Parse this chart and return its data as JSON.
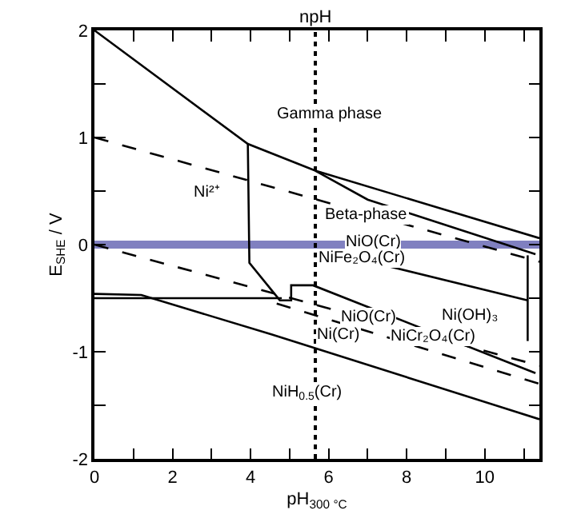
{
  "chart_data": {
    "type": "line",
    "xlabel": "pH$_{300 °C}$",
    "ylabel": "E$_{SHE}$ / V",
    "xlim": [
      0,
      11.4
    ],
    "ylim": [
      -2,
      2
    ],
    "xticks": [
      0,
      {
        "value": 1,
        "label": null
      },
      2,
      {
        "value": 3,
        "label": null
      },
      4,
      {
        "value": 5,
        "label": null
      },
      6,
      {
        "value": 7,
        "label": null
      },
      8,
      {
        "value": 9,
        "label": null
      },
      10,
      {
        "value": 11,
        "label": null
      }
    ],
    "yticks": [
      -2,
      {
        "value": -1.5,
        "label": null
      },
      -1,
      {
        "value": -0.5,
        "label": null
      },
      0,
      {
        "value": 0.5,
        "label": null
      },
      1,
      {
        "value": 1.5,
        "label": null
      },
      2
    ],
    "grid": false,
    "marker": "none",
    "series": [
      {
        "color": "#000000",
        "line_style": "solid",
        "x": [
          0,
          3.93,
          5.66,
          11.4
        ],
        "values": [
          2,
          0.94,
          0.69,
          0.06
        ]
      },
      {
        "color": "#000000",
        "line_style": "solid",
        "x": [
          5.66,
          7.0,
          11.3
        ],
        "values": [
          0.69,
          0.42,
          -0.09
        ]
      },
      {
        "color": "#000000",
        "line_style": "solid",
        "x": [
          3.93,
          3.97,
          4.75,
          5.04,
          5.04,
          5.6,
          11.3
        ],
        "values": [
          0.94,
          -0.17,
          -0.52,
          -0.52,
          -0.38,
          -0.38,
          -1.2
        ]
      },
      {
        "color": "#000000",
        "line_style": "solid",
        "x": [
          0,
          4.8
        ],
        "values": [
          -0.5,
          -0.5
        ]
      },
      {
        "color": "#000000",
        "line_style": "solid",
        "x": [
          0,
          1.2,
          4.55,
          11.4
        ],
        "values": [
          -0.46,
          -0.47,
          -0.84,
          -1.63
        ]
      },
      {
        "color": "#000000",
        "line_style": "solid",
        "x": [
          7.4,
          11.1
        ],
        "values": [
          -0.19,
          -0.52
        ]
      },
      {
        "color": "#000000",
        "line_style": "solid",
        "x": [
          11.1,
          11.1
        ],
        "values": [
          -0.1,
          -0.9
        ]
      },
      {
        "color": "#000000",
        "line_style": "dashed",
        "x": [
          0,
          11.4
        ],
        "values": [
          1,
          -0.16
        ]
      },
      {
        "color": "#000000",
        "line_style": "dashed",
        "x": [
          0,
          11.4
        ],
        "values": [
          0,
          -1.13
        ]
      },
      {
        "color": "#000000",
        "line_style": "dashed",
        "x": [
          4.67,
          11.4
        ],
        "values": [
          -0.55,
          -1.3
        ]
      }
    ],
    "ref_lines": [
      {
        "axis": "y",
        "value": 0,
        "color": "#8080c0",
        "line_style": "solid"
      },
      {
        "axis": "x",
        "value": 5.66,
        "label": "npH",
        "color": "#000000",
        "line_style": "dotted"
      }
    ],
    "annotations": [
      "Gamma phase",
      "Ni²⁺",
      "Beta-phase",
      "NiO(Cr)",
      "NiFe₂O₄(Cr)",
      "Ni(OH)₃",
      "NiO(Cr)",
      "NiCr₂O₄(Cr)",
      "Ni(Cr)",
      "NiH$_{0.5}$(Cr)"
    ]
  }
}
